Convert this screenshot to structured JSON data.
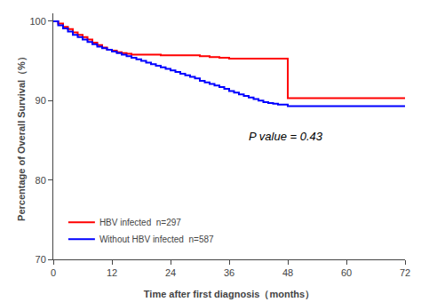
{
  "chart_data": {
    "type": "step",
    "xlabel": "Time after first diagnosis（months）",
    "ylabel": "Percentage of Overall Survival（%）",
    "xlim": [
      0,
      72
    ],
    "ylim": [
      70,
      101
    ],
    "xticks": [
      0,
      12,
      24,
      36,
      48,
      60,
      72
    ],
    "yticks": [
      70,
      80,
      90,
      100
    ],
    "grid": false,
    "legend": "lower left",
    "annotations": [
      {
        "text": "P value = 0.43"
      }
    ],
    "series": [
      {
        "name": "HBV infected  n=297",
        "color": "#FF0000",
        "x": [
          0,
          1,
          2,
          3,
          4,
          5,
          6,
          7,
          8,
          9,
          10,
          11,
          12,
          13,
          14,
          15,
          16,
          18,
          20,
          22,
          24,
          26,
          28,
          30,
          32,
          34,
          36,
          38,
          40,
          42,
          44,
          46,
          48,
          72
        ],
        "values": [
          100,
          99.7,
          99.3,
          99.0,
          98.6,
          98.3,
          98.0,
          97.7,
          97.3,
          97.0,
          96.7,
          96.4,
          96.3,
          96.1,
          96.0,
          95.9,
          95.8,
          95.8,
          95.8,
          95.7,
          95.7,
          95.7,
          95.7,
          95.6,
          95.5,
          95.4,
          95.3,
          95.3,
          95.3,
          95.3,
          95.3,
          95.3,
          90.3,
          90.3
        ]
      },
      {
        "name": "Without HBV infected  n=587",
        "color": "#0000FF",
        "x": [
          0,
          1,
          2,
          3,
          4,
          5,
          6,
          7,
          8,
          9,
          10,
          11,
          12,
          13,
          14,
          15,
          16,
          17,
          18,
          19,
          20,
          21,
          22,
          23,
          24,
          25,
          26,
          27,
          28,
          29,
          30,
          31,
          32,
          33,
          34,
          35,
          36,
          37,
          38,
          39,
          40,
          41,
          42,
          43,
          44,
          45,
          46,
          48,
          72
        ],
        "values": [
          100,
          99.5,
          99.1,
          98.7,
          98.3,
          98.0,
          97.7,
          97.4,
          97.1,
          96.8,
          96.6,
          96.4,
          96.2,
          96.0,
          95.8,
          95.6,
          95.4,
          95.2,
          95.0,
          94.8,
          94.6,
          94.4,
          94.2,
          94.0,
          93.8,
          93.6,
          93.4,
          93.2,
          93.0,
          92.8,
          92.5,
          92.3,
          92.1,
          91.9,
          91.7,
          91.5,
          91.2,
          91.0,
          90.8,
          90.6,
          90.4,
          90.2,
          90.0,
          89.8,
          89.7,
          89.6,
          89.5,
          89.3,
          89.3
        ]
      }
    ]
  }
}
